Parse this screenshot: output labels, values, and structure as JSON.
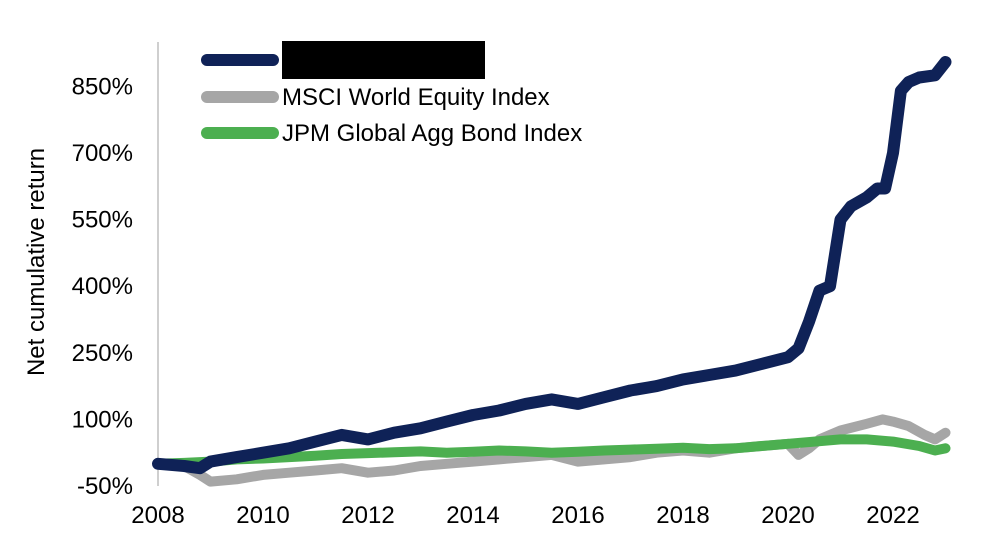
{
  "chart_data": {
    "type": "line",
    "ylabel": "Net cumulative return",
    "xlim": [
      2008,
      2023.2
    ],
    "ylim": [
      -50,
      950
    ],
    "y_ticks": [
      -50,
      100,
      250,
      400,
      550,
      700,
      850
    ],
    "y_tick_labels": [
      "-50%",
      "100%",
      "250%",
      "400%",
      "550%",
      "700%",
      "850%"
    ],
    "x_ticks": [
      2008,
      2010,
      2012,
      2014,
      2016,
      2018,
      2020,
      2022
    ],
    "x_tick_labels": [
      "2008",
      "2010",
      "2012",
      "2014",
      "2016",
      "2018",
      "2020",
      "2022"
    ],
    "grid": false,
    "legend_position": "top-left",
    "series": [
      {
        "name": "",
        "redacted": true,
        "color": "#0f2257",
        "x": [
          2008,
          2008.5,
          2008.8,
          2009,
          2009.5,
          2010,
          2010.5,
          2011,
          2011.5,
          2012,
          2012.5,
          2013,
          2013.5,
          2014,
          2014.5,
          2015,
          2015.5,
          2016,
          2016.5,
          2017,
          2017.5,
          2018,
          2018.5,
          2019,
          2019.5,
          2020,
          2020.2,
          2020.4,
          2020.6,
          2020.8,
          2021,
          2021.2,
          2021.5,
          2021.7,
          2021.85,
          2022,
          2022.15,
          2022.3,
          2022.5,
          2022.8,
          2023
        ],
        "y": [
          0,
          -5,
          -10,
          5,
          15,
          25,
          35,
          50,
          65,
          55,
          70,
          80,
          95,
          110,
          120,
          135,
          145,
          135,
          150,
          165,
          175,
          190,
          200,
          210,
          225,
          240,
          260,
          320,
          390,
          400,
          550,
          580,
          600,
          620,
          620,
          700,
          840,
          860,
          870,
          875,
          905
        ]
      },
      {
        "name": "MSCI World Equity Index",
        "color": "#a6a6a6",
        "x": [
          2008,
          2008.5,
          2008.8,
          2009,
          2009.5,
          2010,
          2010.5,
          2011,
          2011.5,
          2012,
          2012.5,
          2013,
          2013.5,
          2014,
          2014.5,
          2015,
          2015.5,
          2016,
          2016.5,
          2017,
          2017.5,
          2018,
          2018.5,
          2019,
          2019.5,
          2020,
          2020.2,
          2020.4,
          2020.6,
          2021,
          2021.5,
          2021.8,
          2022,
          2022.3,
          2022.6,
          2022.8,
          2023
        ],
        "y": [
          0,
          -5,
          -25,
          -40,
          -35,
          -25,
          -20,
          -15,
          -10,
          -20,
          -15,
          -5,
          0,
          5,
          10,
          15,
          20,
          5,
          10,
          15,
          25,
          30,
          25,
          35,
          40,
          45,
          20,
          35,
          55,
          75,
          90,
          100,
          95,
          85,
          65,
          55,
          70
        ]
      },
      {
        "name": "JPM Global Agg Bond Index",
        "color": "#4caf50",
        "x": [
          2008,
          2008.5,
          2009,
          2009.5,
          2010,
          2010.5,
          2011,
          2011.5,
          2012,
          2012.5,
          2013,
          2013.5,
          2014,
          2014.5,
          2015,
          2015.5,
          2016,
          2016.5,
          2017,
          2017.5,
          2018,
          2018.5,
          2019,
          2019.5,
          2020,
          2020.5,
          2021,
          2021.5,
          2022,
          2022.5,
          2022.8,
          2023
        ],
        "y": [
          0,
          2,
          5,
          10,
          12,
          15,
          18,
          22,
          24,
          26,
          28,
          25,
          27,
          30,
          28,
          25,
          27,
          30,
          32,
          34,
          36,
          33,
          35,
          40,
          45,
          50,
          55,
          55,
          50,
          40,
          30,
          35
        ]
      }
    ]
  }
}
